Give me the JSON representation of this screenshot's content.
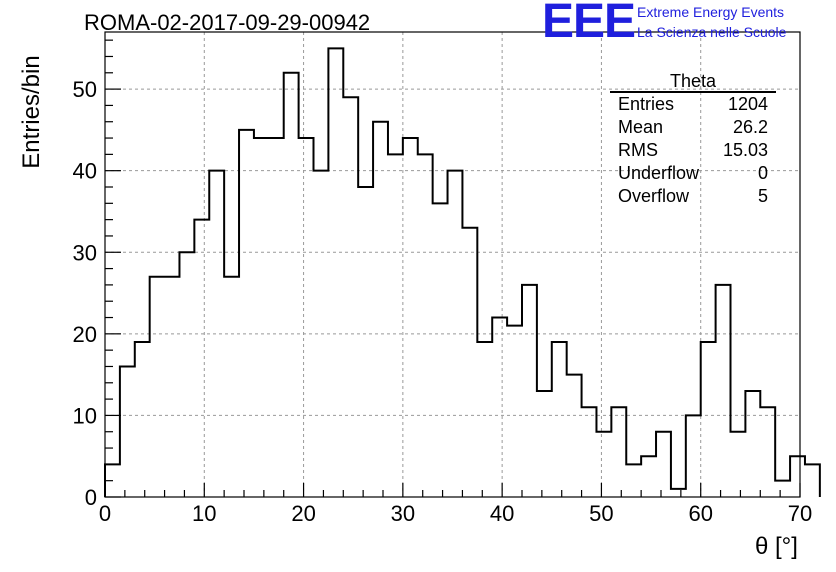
{
  "header": {
    "run_title": "ROMA-02-2017-09-29-00942",
    "logo_text": "EEE",
    "logo_line1": "Extreme Energy Events",
    "logo_line2": "La Scienza nelle Scuole"
  },
  "stats_box": {
    "title": "Theta",
    "rows": [
      {
        "label": "Entries",
        "value": "1204"
      },
      {
        "label": "Mean",
        "value": "26.2"
      },
      {
        "label": "RMS",
        "value": "15.03"
      },
      {
        "label": "Underflow",
        "value": "0"
      },
      {
        "label": "Overflow",
        "value": "5"
      }
    ]
  },
  "chart_data": {
    "type": "bar",
    "style": "step histogram",
    "xlabel": "θ [°]",
    "ylabel": "Entries/bin",
    "xlim": [
      0,
      70
    ],
    "ylim": [
      0,
      57
    ],
    "xticks": [
      0,
      10,
      20,
      30,
      40,
      50,
      60,
      70
    ],
    "yticks": [
      0,
      10,
      20,
      30,
      40,
      50
    ],
    "grid": true,
    "bin_width": 1.5,
    "bin_start": 0,
    "values": [
      4,
      16,
      19,
      27,
      27,
      30,
      34,
      40,
      27,
      45,
      44,
      44,
      52,
      44,
      40,
      55,
      49,
      38,
      46,
      42,
      44,
      42,
      36,
      40,
      33,
      19,
      22,
      21,
      26,
      13,
      19,
      15,
      11,
      8,
      11,
      4,
      5,
      8,
      1,
      10,
      19,
      26,
      8,
      13,
      11,
      2,
      5,
      4
    ]
  }
}
